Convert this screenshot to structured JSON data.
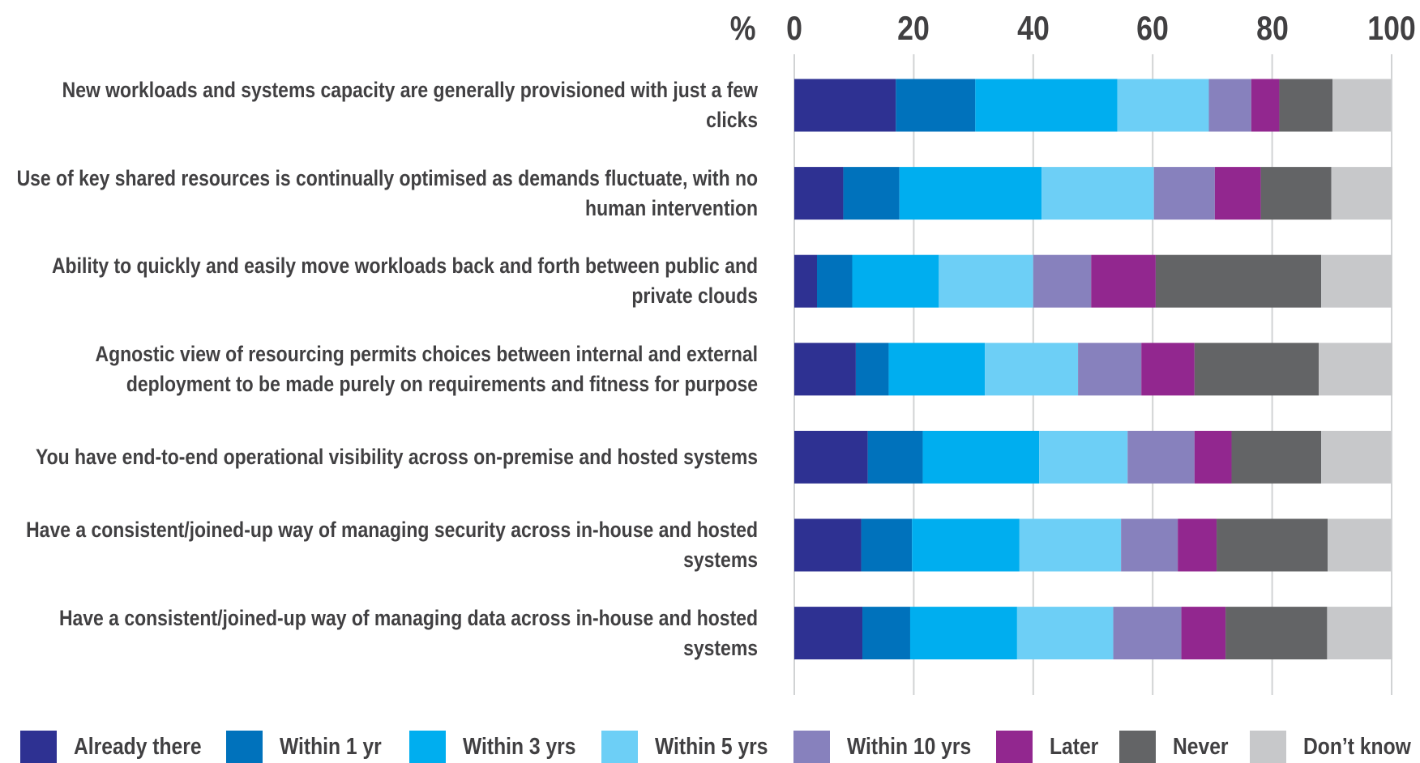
{
  "chart_data": {
    "type": "stacked_barh",
    "xlabel": "%",
    "categories": [
      "New workloads and systems capacity are generally provisioned with just a few clicks",
      "Use of key shared resources is continually optimised as demands fluctuate, with no human intervention",
      "Ability to quickly and easily move workloads back and forth between public and private clouds",
      "Agnostic view of resourcing permits choices between internal and external deployment to be made purely on requirements and fitness for purpose",
      "You have end-to-end operational visibility across on-premise and hosted systems",
      "Have a consistent/joined-up way of managing security across in-house and hosted systems",
      "Have a consistent/joined-up way of managing data across in-house and hosted systems"
    ],
    "series": [
      {
        "name": "Already there",
        "color": "#2e3192",
        "values": [
          17.0,
          8.2,
          3.8,
          10.3,
          12.3,
          11.2,
          11.4
        ]
      },
      {
        "name": "Within 1 yr",
        "color": "#0072bc",
        "values": [
          13.3,
          9.4,
          5.9,
          5.5,
          9.2,
          8.5,
          8.0
        ]
      },
      {
        "name": "Within 3 yrs",
        "color": "#00aeef",
        "values": [
          23.8,
          23.8,
          14.5,
          16.1,
          19.5,
          18.0,
          17.9
        ]
      },
      {
        "name": "Within 5 yrs",
        "color": "#6dcff6",
        "values": [
          15.3,
          18.8,
          15.8,
          15.6,
          14.8,
          17.0,
          16.1
        ]
      },
      {
        "name": "Within 10 yrs",
        "color": "#8781bd",
        "values": [
          7.1,
          10.2,
          9.7,
          10.6,
          11.2,
          9.5,
          11.4
        ]
      },
      {
        "name": "Later",
        "color": "#92278f",
        "values": [
          4.7,
          7.7,
          10.8,
          8.9,
          6.2,
          6.5,
          7.4
        ]
      },
      {
        "name": "Never",
        "color": "#636466",
        "values": [
          8.9,
          11.8,
          27.7,
          20.8,
          15.0,
          18.6,
          17.0
        ]
      },
      {
        "name": "Don’t know",
        "color": "#c7c8ca",
        "values": [
          9.8,
          10.2,
          11.8,
          12.3,
          11.7,
          10.6,
          10.9
        ]
      }
    ],
    "xlim": [
      0,
      100
    ],
    "xticks": [
      0,
      20,
      40,
      60,
      80,
      100
    ],
    "grid": true
  }
}
